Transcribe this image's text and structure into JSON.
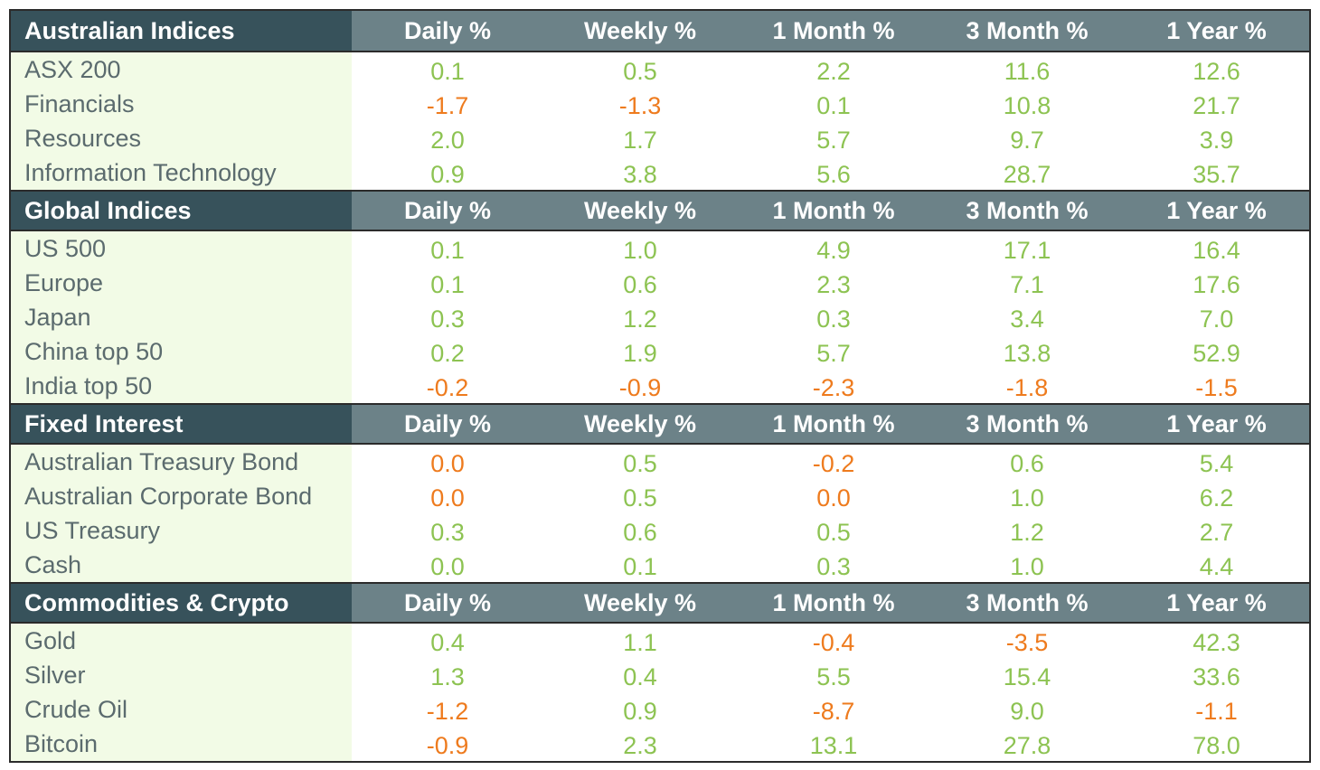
{
  "columns": [
    "Daily %",
    "Weekly %",
    "1 Month %",
    "3 Month %",
    "1 Year %"
  ],
  "colors": {
    "header_dark": "#37525b",
    "header_mid": "#6c8288",
    "label_bg": "#f2fbe6",
    "positive": "#8dc352",
    "negative": "#ee7b1e"
  },
  "sections": [
    {
      "title": "Australian Indices",
      "rows": [
        {
          "name": "ASX 200",
          "values": [
            "0.1",
            "0.5",
            "2.2",
            "11.6",
            "12.6"
          ]
        },
        {
          "name": "Financials",
          "values": [
            "-1.7",
            "-1.3",
            "0.1",
            "10.8",
            "21.7"
          ]
        },
        {
          "name": "Resources",
          "values": [
            "2.0",
            "1.7",
            "5.7",
            "9.7",
            "3.9"
          ]
        },
        {
          "name": "Information Technology",
          "values": [
            "0.9",
            "3.8",
            "5.6",
            "28.7",
            "35.7"
          ]
        }
      ]
    },
    {
      "title": "Global Indices",
      "rows": [
        {
          "name": "US 500",
          "values": [
            "0.1",
            "1.0",
            "4.9",
            "17.1",
            "16.4"
          ]
        },
        {
          "name": "Europe",
          "values": [
            "0.1",
            "0.6",
            "2.3",
            "7.1",
            "17.6"
          ]
        },
        {
          "name": "Japan",
          "values": [
            "0.3",
            "1.2",
            "0.3",
            "3.4",
            "7.0"
          ]
        },
        {
          "name": "China top 50",
          "values": [
            "0.2",
            "1.9",
            "5.7",
            "13.8",
            "52.9"
          ]
        },
        {
          "name": "India top 50",
          "values": [
            "-0.2",
            "-0.9",
            "-2.3",
            "-1.8",
            "-1.5"
          ]
        }
      ]
    },
    {
      "title": "Fixed Interest",
      "rows": [
        {
          "name": "Australian Treasury Bond",
          "values": [
            "0.0",
            "0.5",
            "-0.2",
            "0.6",
            "5.4"
          ],
          "neg_zero": [
            true,
            false,
            false,
            false,
            false
          ]
        },
        {
          "name": "Australian Corporate Bond",
          "values": [
            "0.0",
            "0.5",
            "0.0",
            "1.0",
            "6.2"
          ],
          "neg_zero": [
            true,
            false,
            true,
            false,
            false
          ]
        },
        {
          "name": "US Treasury",
          "values": [
            "0.3",
            "0.6",
            "0.5",
            "1.2",
            "2.7"
          ]
        },
        {
          "name": "Cash",
          "values": [
            "0.0",
            "0.1",
            "0.3",
            "1.0",
            "4.4"
          ]
        }
      ]
    },
    {
      "title": "Commodities & Crypto",
      "rows": [
        {
          "name": "Gold",
          "values": [
            "0.4",
            "1.1",
            "-0.4",
            "-3.5",
            "42.3"
          ]
        },
        {
          "name": "Silver",
          "values": [
            "1.3",
            "0.4",
            "5.5",
            "15.4",
            "33.6"
          ]
        },
        {
          "name": "Crude Oil",
          "values": [
            "-1.2",
            "0.9",
            "-8.7",
            "9.0",
            "-1.1"
          ]
        },
        {
          "name": "Bitcoin",
          "values": [
            "-0.9",
            "2.3",
            "13.1",
            "27.8",
            "78.0"
          ]
        }
      ]
    }
  ]
}
